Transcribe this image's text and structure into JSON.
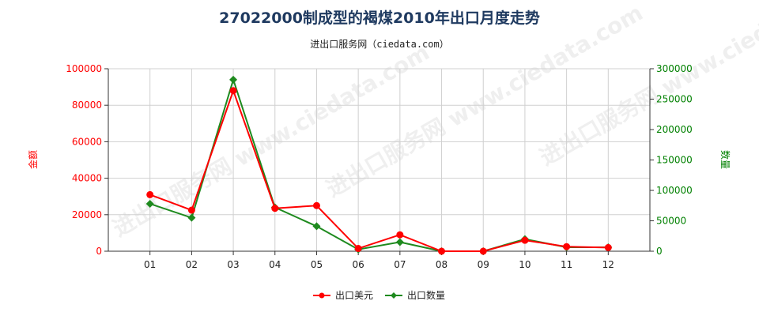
{
  "header": {
    "title": "27022000制成型的褐煤2010年出口月度走势",
    "subtitle": "进出口服务网（ciedata.com）"
  },
  "watermark": "进出口服务网 www.ciedata.com",
  "colors": {
    "left_axis": "#ff0000",
    "right_axis": "#008000",
    "amount_series": "#ff0000",
    "quantity_series": "#1e8a1e",
    "grid": "#d0d0d0",
    "axis": "#333333",
    "title": "#1f3a60"
  },
  "chart_data": {
    "type": "line",
    "categories": [
      "01",
      "02",
      "03",
      "04",
      "05",
      "06",
      "07",
      "08",
      "09",
      "10",
      "11",
      "12"
    ],
    "ylabel_left": "金额",
    "ylabel_right": "数量",
    "ylim_left": [
      0,
      100000
    ],
    "ylim_right": [
      0,
      300000
    ],
    "yticks_left": [
      "0",
      "20000",
      "40000",
      "60000",
      "80000",
      "100000"
    ],
    "yticks_right": [
      "0",
      "50000",
      "100000",
      "150000",
      "200000",
      "250000",
      "300000"
    ],
    "grid": true,
    "legend_position": "bottom",
    "series": [
      {
        "name": "出口美元",
        "axis": "left",
        "marker": "circle",
        "values": [
          31000,
          22500,
          88000,
          23500,
          25000,
          1500,
          9000,
          0,
          0,
          6000,
          2500,
          2000
        ]
      },
      {
        "name": "出口数量",
        "axis": "right",
        "marker": "diamond",
        "values": [
          78000,
          55000,
          282000,
          72000,
          41000,
          3000,
          15000,
          0,
          0,
          20000,
          6500,
          6500
        ]
      }
    ]
  }
}
